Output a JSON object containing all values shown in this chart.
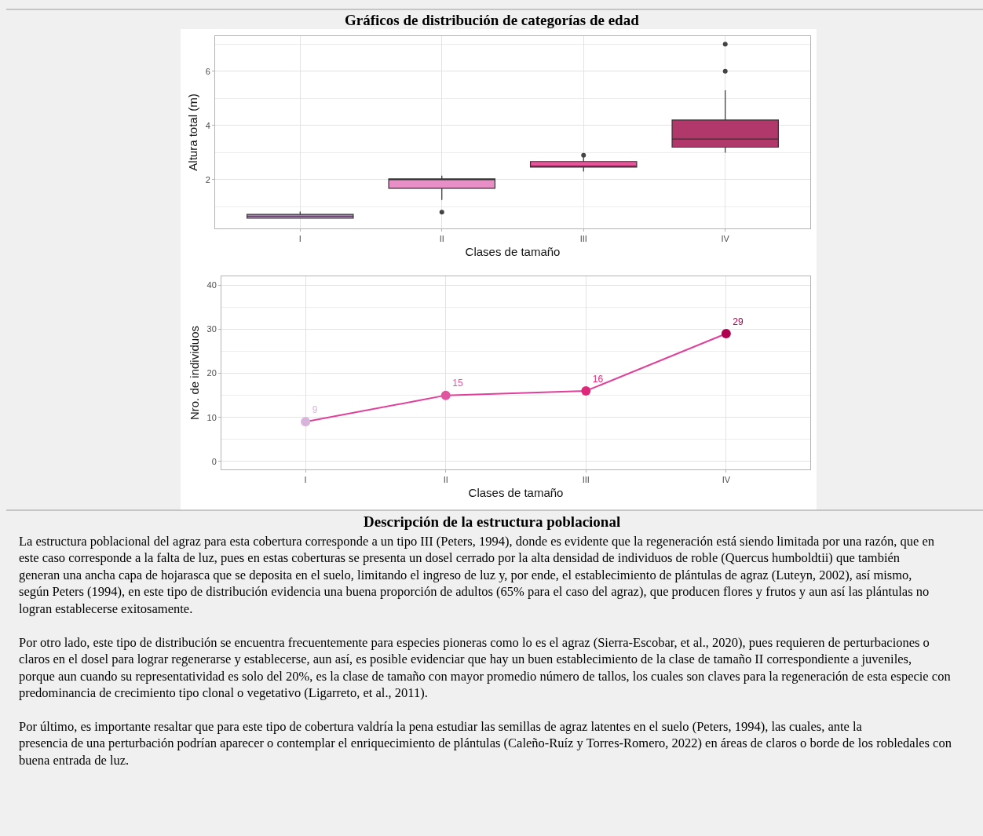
{
  "chart_data": [
    {
      "type": "box",
      "title": "Gráficos de distribución de categorías de edad",
      "xlabel": "Clases de tamaño",
      "ylabel": "Altura total (m)",
      "categories": [
        "I",
        "II",
        "III",
        "IV"
      ],
      "boxes": [
        {
          "low": 0.58,
          "q1": 0.58,
          "median": 0.65,
          "q3": 0.72,
          "high": 0.82
        },
        {
          "low": 1.25,
          "q1": 1.68,
          "median": 2.03,
          "q3": 2.03,
          "high": 2.15,
          "outliers": [
            0.8
          ]
        },
        {
          "low": 2.3,
          "q1": 2.46,
          "median": 2.5,
          "q3": 2.67,
          "high": 2.85,
          "outliers": [
            2.9
          ]
        },
        {
          "low": 3.0,
          "q1": 3.2,
          "median": 3.5,
          "q3": 4.2,
          "high": 5.3,
          "outliers": [
            6,
            7
          ]
        }
      ],
      "colors": [
        "#c9a3cf",
        "#e88fc8",
        "#e8559a",
        "#b0386b"
      ],
      "ylim": [
        0.2,
        7.3
      ],
      "yticks": [
        2,
        4,
        6
      ],
      "grid": true
    },
    {
      "type": "line",
      "xlabel": "Clases de tamaño",
      "ylabel": "Nro. de individuos",
      "categories": [
        "I",
        "II",
        "III",
        "IV"
      ],
      "series": [
        {
          "color": "#e0409a",
          "colors": [
            "#d8b4dc",
            "#e055a0",
            "#e0287a",
            "#b0004f"
          ],
          "values": [
            9,
            15,
            16,
            29
          ]
        }
      ],
      "ylim": [
        -1.8,
        42
      ],
      "yticks": [
        0,
        10,
        20,
        30,
        40
      ],
      "grid": true,
      "marker": "circle",
      "line_style": "solid",
      "data_labels": true,
      "annotations": [
        "Descripción de la estructura poblacional",
        "La estructura poblacional del agraz para esta cobertura corresponde a un tipo III (Peters, 1994), donde es evidente que la regeneración está siendo limitada por una razón, que en este caso corresponde a la falta de luz, pues en estas coberturas se presenta un dosel cerrado por la alta densidad de individuos de roble (Quercus humboldtii) que también generan una ancha capa de hojarasca que se deposita en el suelo, limitando el ingreso de luz y, por ende, el establecimiento de plántulas de agraz (Luteyn, 2002), así mismo, según Peters (1994), en este tipo de distribución evidencia una buena proporción de adultos (65% para el caso del agraz), que producen flores y frutos y aun así las plántulas no logran establecerse exitosamente.",
        "Por otro lado, este tipo de distribución se encuentra frecuentemente para especies pioneras como lo es el agraz (Sierra-Escobar, et al., 2020), pues requieren de perturbaciones o claros en el dosel para lograr regenerarse y establecerse, aun así, es posible evidenciar que hay un buen establecimiento de la clase de tamaño II correspondiente a juveniles, porque aun cuando su representatividad es solo del 20%, es la clase de tamaño con mayor promedio número de tallos, los cuales son claves para la regeneración de esta especie con predominancia de crecimiento tipo clonal o vegetativo (Ligarreto, et al., 2011).",
        "Por último, es importante resaltar que para este tipo de cobertura valdría la pena estudiar las semillas de agraz latentes en el suelo (Peters, 1994), las cuales, ante la presencia de una perturbación podrían aparecer o contemplar el enriquecimiento de plántulas (Caleño-Ruíz y Torres-Romero, 2022) en áreas de claros o borde de los robledales con buena entrada de luz."
      ]
    }
  ]
}
